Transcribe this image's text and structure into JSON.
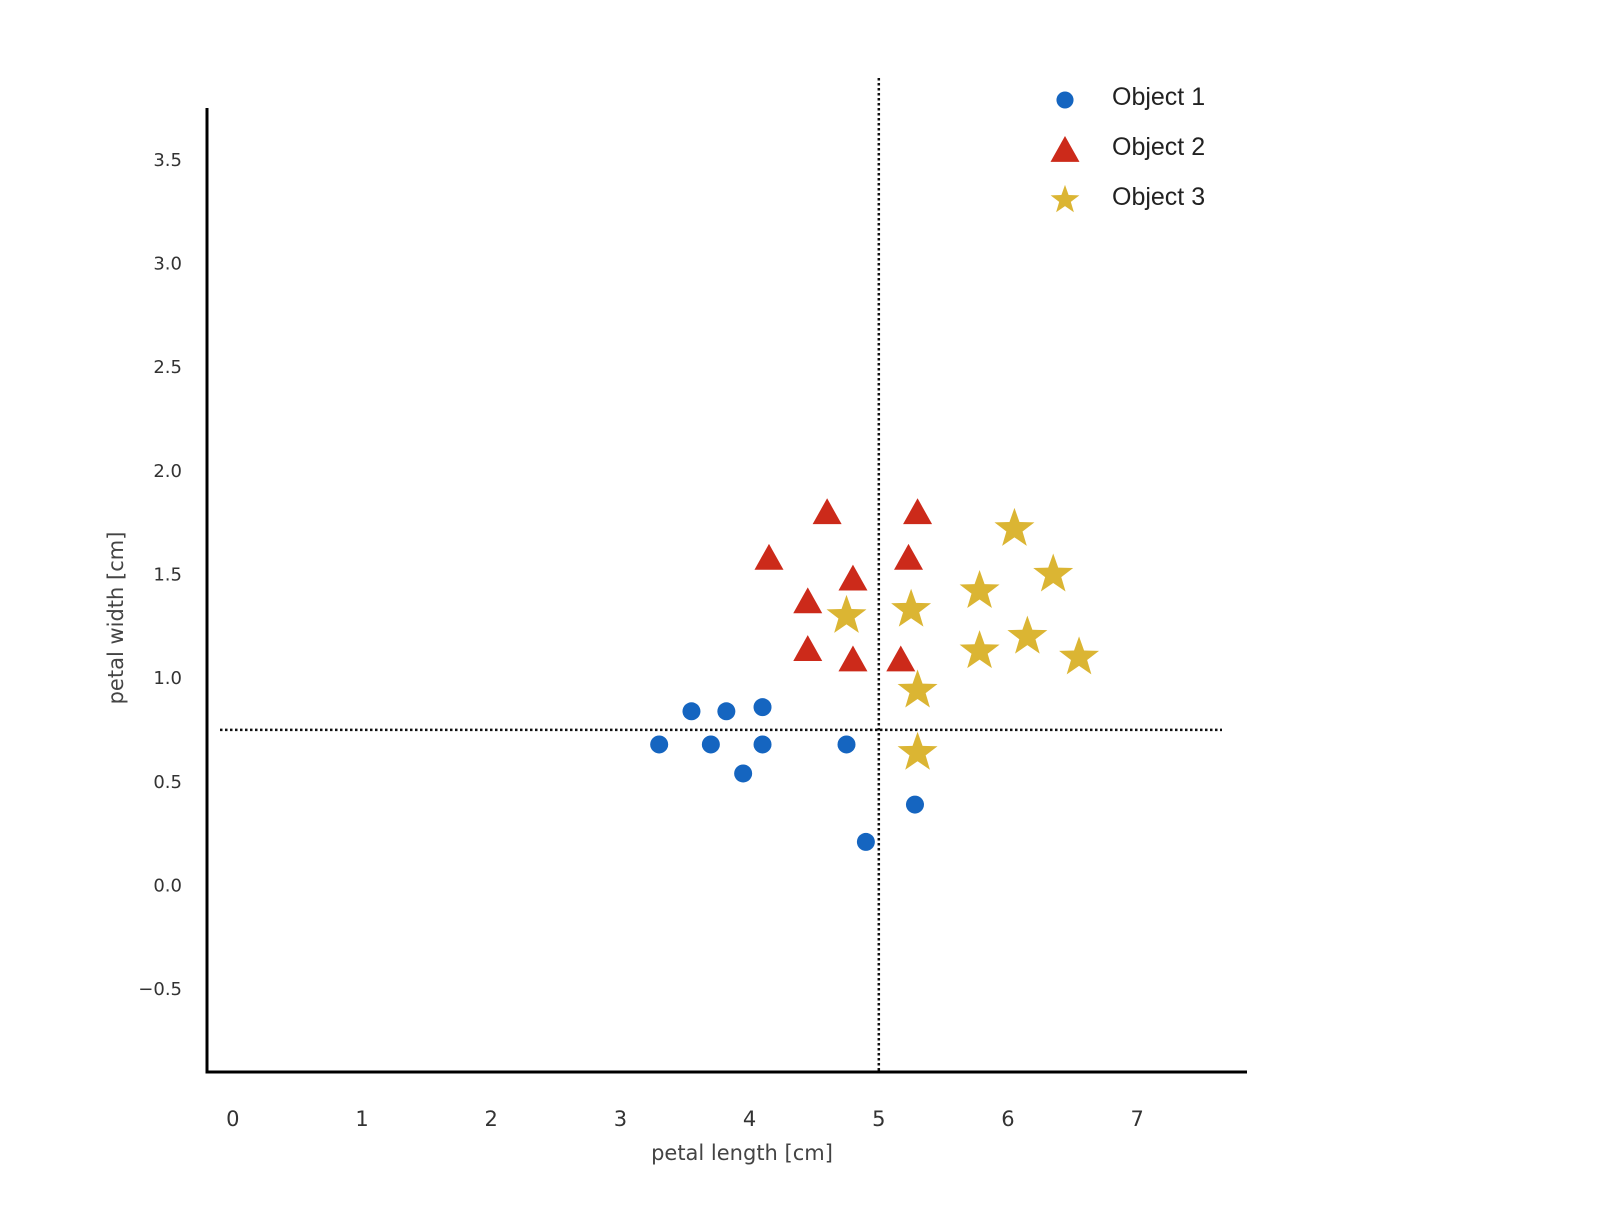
{
  "chart_data": {
    "type": "scatter",
    "title": "",
    "xlabel": "petal length [cm]",
    "ylabel": "petal width [cm]",
    "xlim": [
      -0.2,
      7.85
    ],
    "ylim": [
      -0.9,
      3.75
    ],
    "xticks": [
      0,
      1,
      2,
      3,
      4,
      5,
      6,
      7
    ],
    "xtick_labels": [
      "0",
      "1",
      "2",
      "3",
      "4",
      "5",
      "6",
      "7"
    ],
    "yticks": [
      -0.5,
      0.0,
      0.5,
      1.0,
      1.5,
      2.0,
      2.5,
      3.0,
      3.5
    ],
    "ytick_labels": [
      "−0.5",
      "0.0",
      "0.5",
      "1.0",
      "1.5",
      "2.0",
      "2.5",
      "3.0",
      "3.5"
    ],
    "grid": false,
    "legend_position": "top-right",
    "reference_lines": {
      "vertical_x": 5.0,
      "horizontal_y": 0.75
    },
    "series": [
      {
        "name": "Object 1",
        "marker": "circle",
        "color": "#1565c0",
        "points": [
          [
            3.3,
            0.68
          ],
          [
            3.55,
            0.84
          ],
          [
            3.82,
            0.84
          ],
          [
            4.1,
            0.86
          ],
          [
            3.7,
            0.68
          ],
          [
            4.1,
            0.68
          ],
          [
            3.95,
            0.54
          ],
          [
            4.75,
            0.68
          ],
          [
            5.28,
            0.39
          ],
          [
            4.9,
            0.21
          ]
        ]
      },
      {
        "name": "Object 2",
        "marker": "triangle",
        "color": "#cc2a1a",
        "points": [
          [
            4.6,
            1.8
          ],
          [
            5.3,
            1.8
          ],
          [
            4.15,
            1.58
          ],
          [
            5.23,
            1.58
          ],
          [
            4.8,
            1.48
          ],
          [
            4.45,
            1.37
          ],
          [
            4.45,
            1.14
          ],
          [
            4.8,
            1.09
          ],
          [
            5.17,
            1.09
          ]
        ]
      },
      {
        "name": "Object 3",
        "marker": "star",
        "color": "#dbb533",
        "points": [
          [
            6.05,
            1.72
          ],
          [
            6.35,
            1.5
          ],
          [
            5.78,
            1.42
          ],
          [
            4.75,
            1.3
          ],
          [
            5.25,
            1.33
          ],
          [
            5.78,
            1.13
          ],
          [
            6.15,
            1.2
          ],
          [
            6.55,
            1.1
          ],
          [
            5.3,
            0.94
          ],
          [
            5.3,
            0.64
          ]
        ]
      }
    ]
  }
}
